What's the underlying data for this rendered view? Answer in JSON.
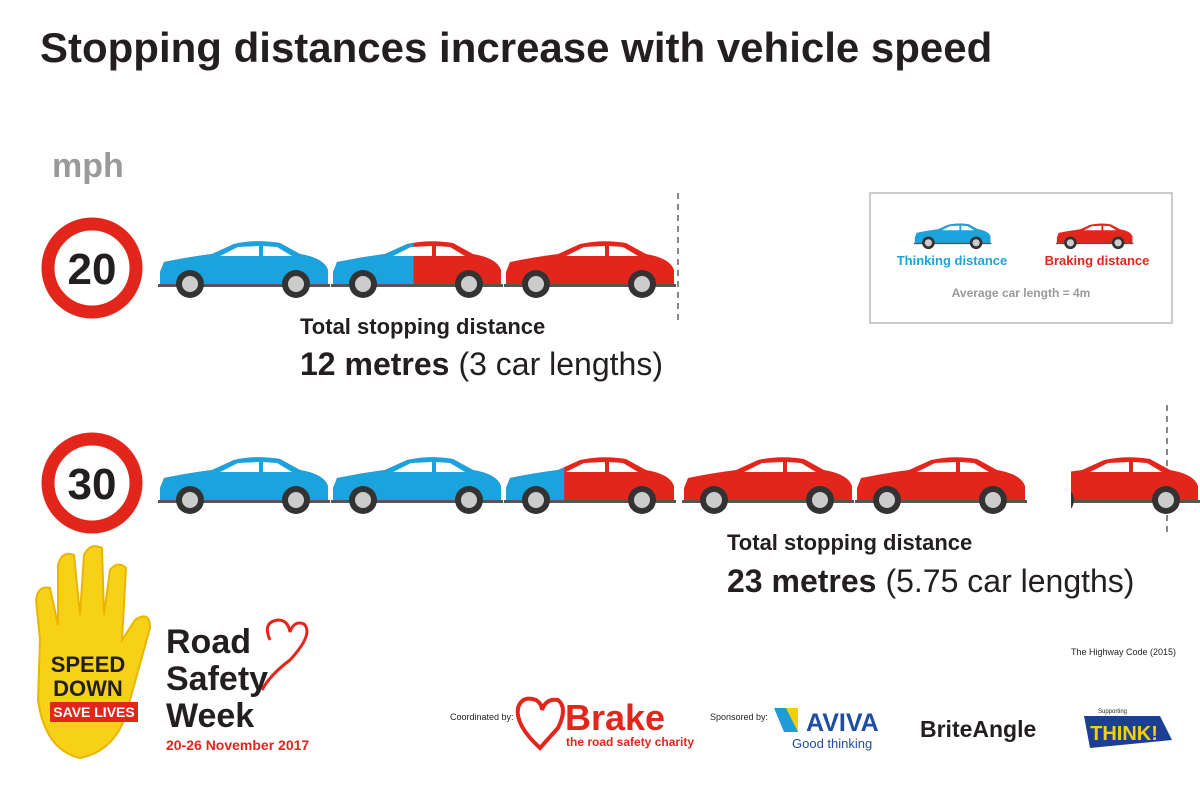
{
  "title": "Stopping distances increase with vehicle speed",
  "unit": "mph",
  "rows": [
    {
      "speed": "20",
      "caption": "Total stopping distance",
      "distance": "12 metres",
      "lengths": "(3 car lengths)"
    },
    {
      "speed": "30",
      "caption": "Total stopping distance",
      "distance": "23 metres",
      "lengths": "(5.75 car lengths)"
    }
  ],
  "legend": {
    "thinking": "Thinking distance",
    "braking": "Braking distance",
    "note": "Average car length = 4m"
  },
  "source": "The Highway Code (2015)",
  "campaign": {
    "badge": [
      "SPEED",
      "DOWN"
    ],
    "banner": "SAVE LIVES",
    "name": [
      "Road",
      "Safety",
      "Week"
    ],
    "dates": "20-26 November 2017"
  },
  "partners": {
    "coordinated_label": "Coordinated by:",
    "brake": "Brake",
    "brake_tagline": "the road safety charity",
    "sponsored_label": "Sponsored by:",
    "aviva": "AVIVA",
    "aviva_tagline": "Good thinking",
    "briteangle": "BriteAngle",
    "supporting": "Supporting",
    "think": "THINK!"
  }
}
